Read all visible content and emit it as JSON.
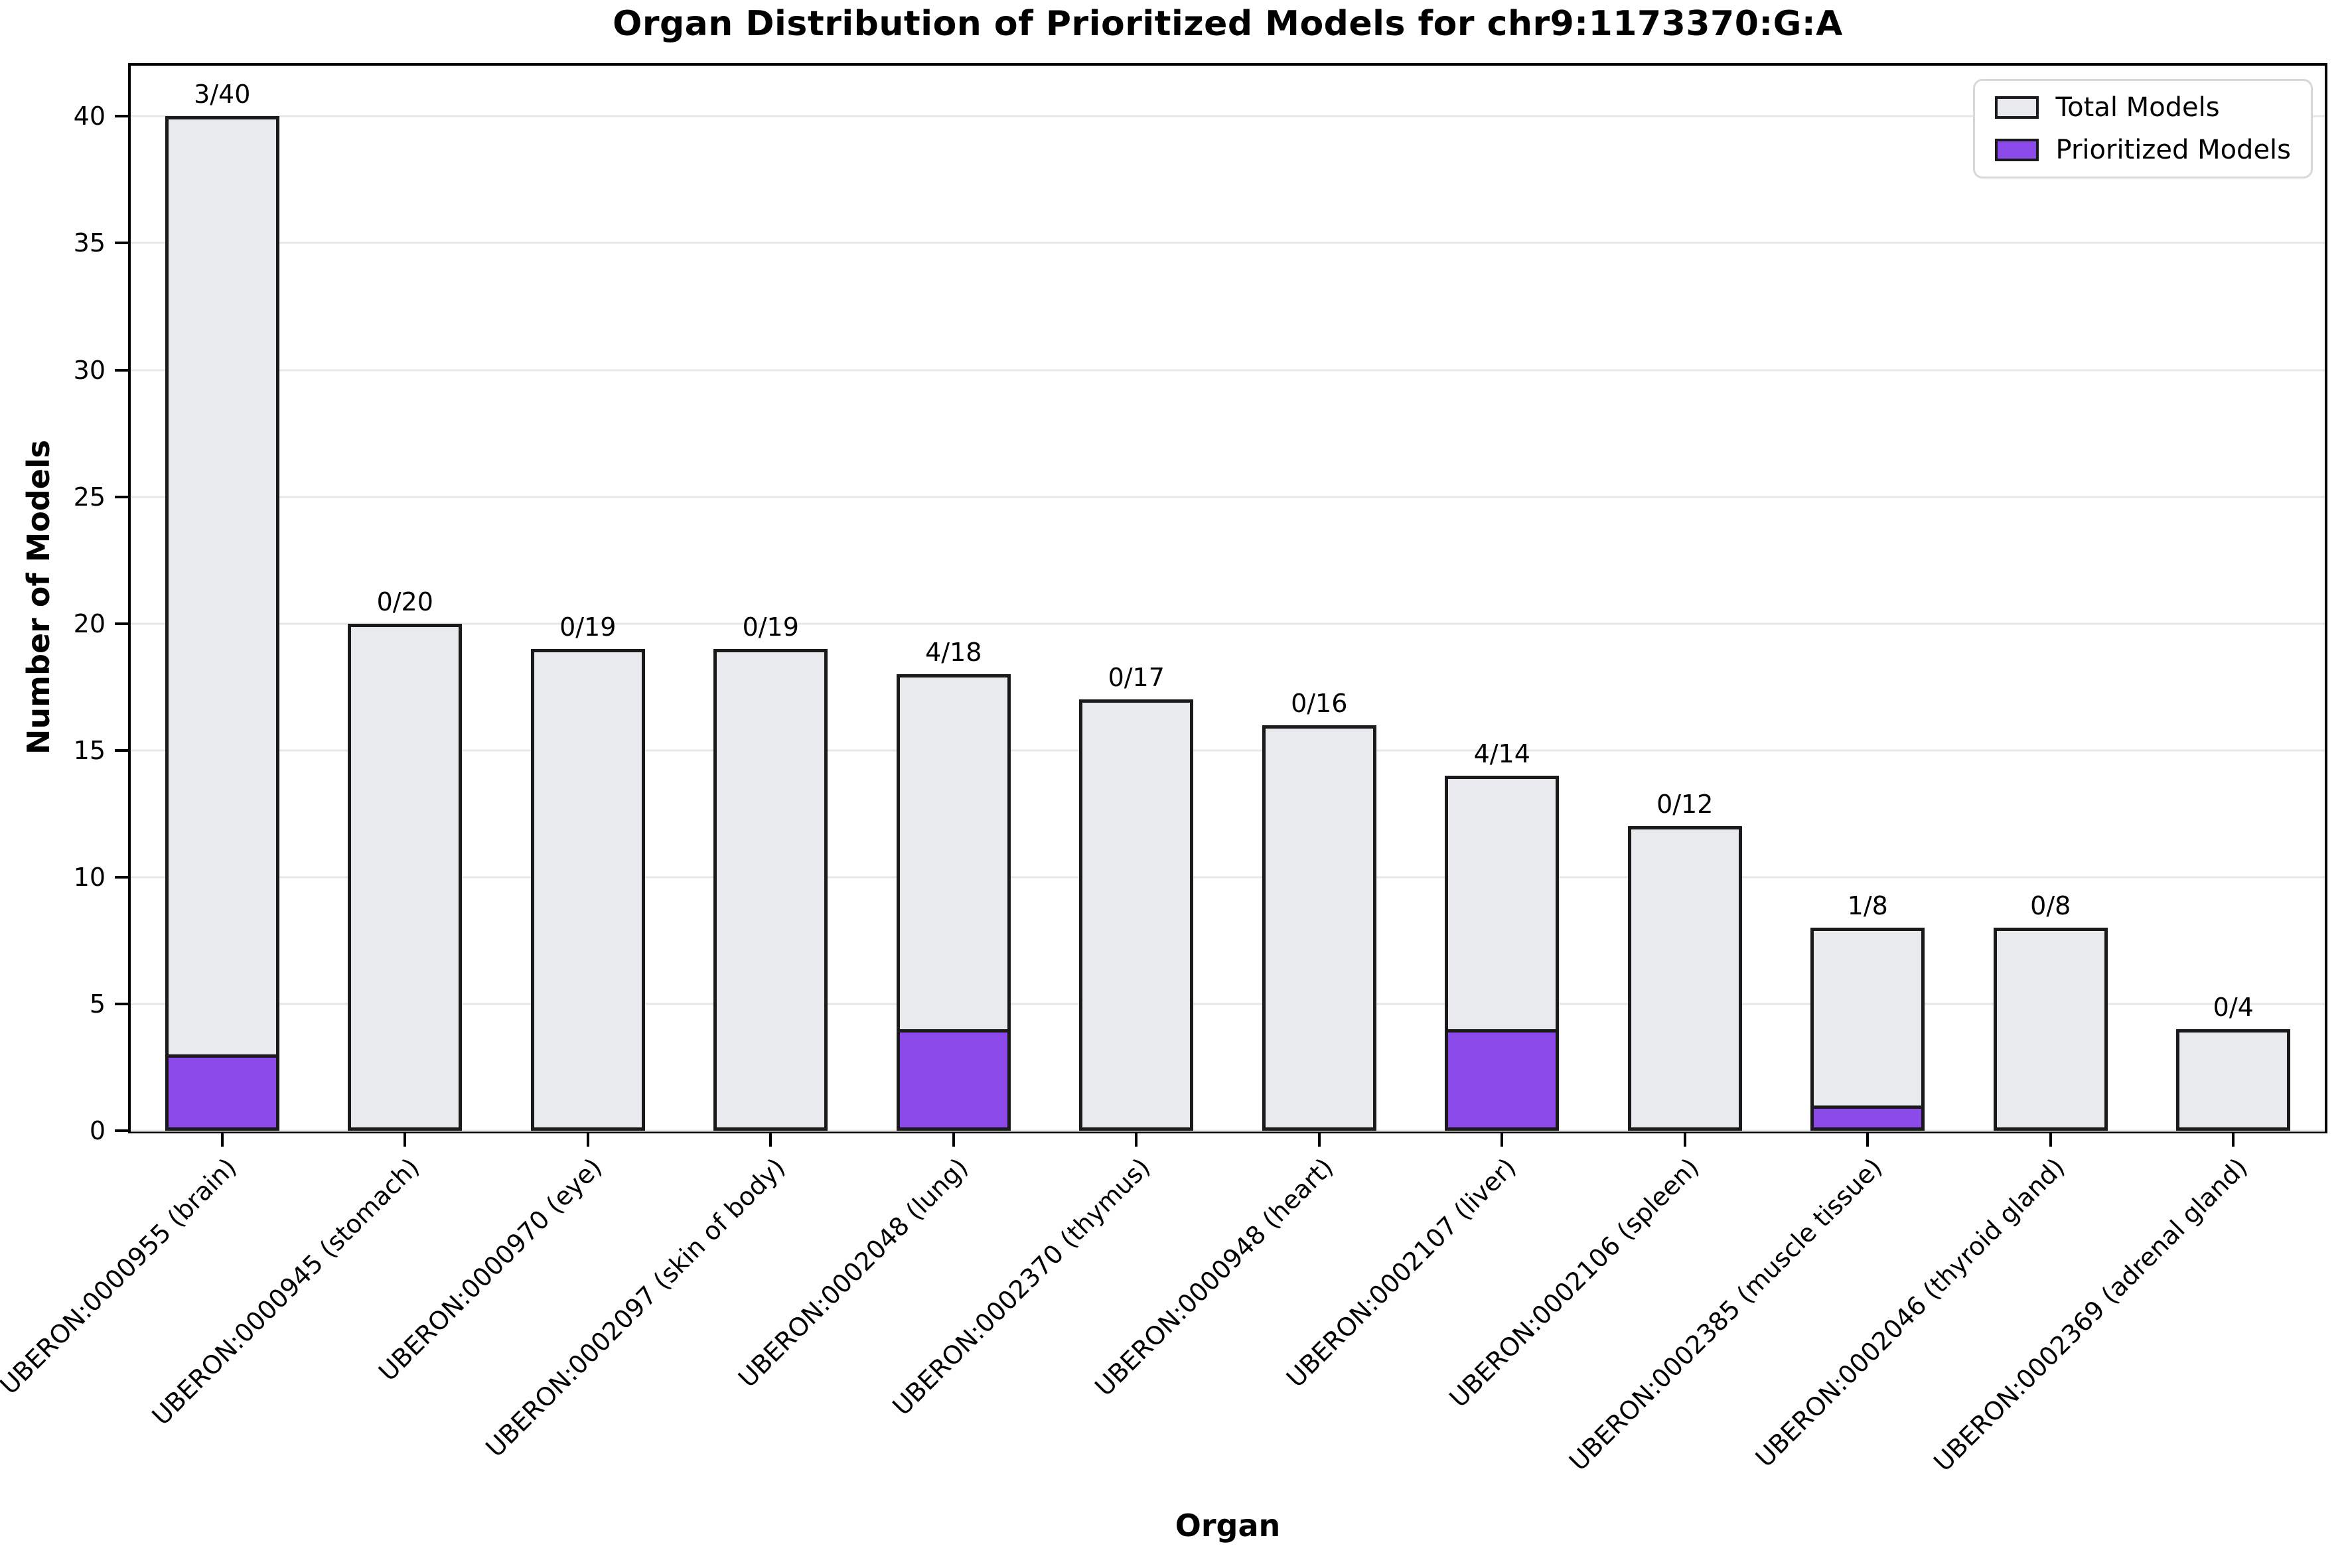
{
  "title": "Organ Distribution of Prioritized Models for chr9:1173370:G:A",
  "chart_data": {
    "type": "bar",
    "title": "Organ Distribution of Prioritized Models for chr9:1173370:G:A",
    "xlabel": "Organ",
    "ylabel": "Number of Models",
    "ylim": [
      0,
      42
    ],
    "yticks": [
      0,
      5,
      10,
      15,
      20,
      25,
      30,
      35,
      40
    ],
    "grid": "horizontal-light",
    "legend_position": "upper right",
    "x_tick_rotation_deg": 45,
    "categories": [
      "UBERON:0000955 (brain)",
      "UBERON:0000945 (stomach)",
      "UBERON:0000970 (eye)",
      "UBERON:0002097 (skin of body)",
      "UBERON:0002048 (lung)",
      "UBERON:0002370 (thymus)",
      "UBERON:0000948 (heart)",
      "UBERON:0002107 (liver)",
      "UBERON:0002106 (spleen)",
      "UBERON:0002385 (muscle tissue)",
      "UBERON:0002046 (thyroid gland)",
      "UBERON:0002369 (adrenal gland)"
    ],
    "series": [
      {
        "name": "Total Models",
        "color": "#e8eaed",
        "values": [
          40,
          20,
          19,
          19,
          18,
          17,
          16,
          14,
          12,
          8,
          8,
          4
        ]
      },
      {
        "name": "Prioritized Models",
        "color": "#8a49e8",
        "values": [
          3,
          0,
          0,
          0,
          4,
          0,
          0,
          4,
          0,
          1,
          0,
          0
        ]
      }
    ],
    "annotations": [
      "3/40",
      "0/20",
      "0/19",
      "0/19",
      "4/18",
      "0/17",
      "0/16",
      "4/14",
      "0/12",
      "1/8",
      "0/8",
      "0/4"
    ]
  },
  "colors": {
    "background": "#ffffff",
    "bar_edge": "#1a1a1a",
    "gridline": "#e7e7e7",
    "legend_border": "#d8d8d8",
    "text": "#000000"
  }
}
